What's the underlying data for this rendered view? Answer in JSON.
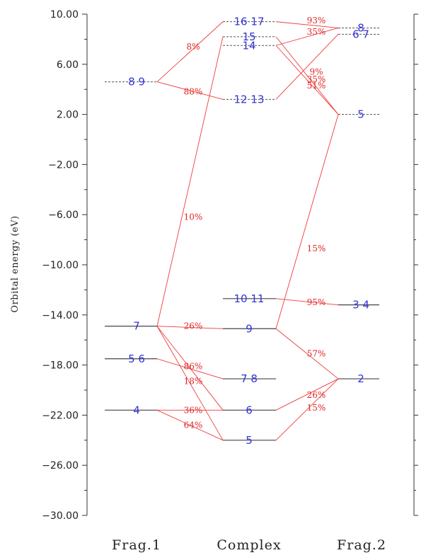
{
  "chart_data": {
    "type": "orbital-correlation-diagram",
    "ylabel": "Orbital energy (eV)",
    "yticks": [
      "10.00",
      "6.00",
      "2.00",
      "−2.00",
      "−6.00",
      "−10.00",
      "−14.00",
      "−18.00",
      "−22.00",
      "−26.00",
      "−30.00"
    ],
    "ytick_values": [
      10,
      6,
      2,
      -2,
      -6,
      -10,
      -14,
      -18,
      -22,
      -26,
      -30
    ],
    "ylim": [
      -30,
      10
    ],
    "columns": [
      "Frag.1",
      "Complex",
      "Frag.2"
    ],
    "levels": [
      {
        "col": 0,
        "e": 4.6,
        "occ": false,
        "label": "8 9"
      },
      {
        "col": 0,
        "e": -14.9,
        "occ": true,
        "label": "7"
      },
      {
        "col": 0,
        "e": -17.5,
        "occ": true,
        "label": "5 6"
      },
      {
        "col": 0,
        "e": -21.6,
        "occ": true,
        "label": "4"
      },
      {
        "col": 1,
        "e": 9.4,
        "occ": false,
        "label": "16 17"
      },
      {
        "col": 1,
        "e": 8.2,
        "occ": false,
        "label": "15"
      },
      {
        "col": 1,
        "e": 7.5,
        "occ": false,
        "label": "14"
      },
      {
        "col": 1,
        "e": 3.2,
        "occ": false,
        "label": "12 13"
      },
      {
        "col": 1,
        "e": -12.7,
        "occ": true,
        "label": "10 11"
      },
      {
        "col": 1,
        "e": -15.1,
        "occ": true,
        "label": "9"
      },
      {
        "col": 1,
        "e": -19.1,
        "occ": true,
        "label": "7 8"
      },
      {
        "col": 1,
        "e": -21.6,
        "occ": true,
        "label": "6"
      },
      {
        "col": 1,
        "e": -24.0,
        "occ": true,
        "label": "5"
      },
      {
        "col": 2,
        "e": 8.9,
        "occ": false,
        "label": "8"
      },
      {
        "col": 2,
        "e": 8.4,
        "occ": false,
        "label": "6 7"
      },
      {
        "col": 2,
        "e": 2.0,
        "occ": false,
        "label": "5"
      },
      {
        "col": 2,
        "e": -13.2,
        "occ": true,
        "label": "3 4"
      },
      {
        "col": 2,
        "e": -19.1,
        "occ": true,
        "label": "2"
      }
    ],
    "connections": [
      {
        "from": {
          "col": 0,
          "e": 4.6
        },
        "to": {
          "col": 1,
          "e": 9.4
        }
      },
      {
        "from": {
          "col": 0,
          "e": 4.6
        },
        "to": {
          "col": 1,
          "e": 3.2
        }
      },
      {
        "from": {
          "col": 0,
          "e": -14.9
        },
        "to": {
          "col": 1,
          "e": 8.2
        }
      },
      {
        "from": {
          "col": 0,
          "e": -14.9
        },
        "to": {
          "col": 1,
          "e": -15.1
        }
      },
      {
        "from": {
          "col": 0,
          "e": -14.9
        },
        "to": {
          "col": 1,
          "e": -21.6
        }
      },
      {
        "from": {
          "col": 0,
          "e": -14.9
        },
        "to": {
          "col": 1,
          "e": -24.0
        }
      },
      {
        "from": {
          "col": 0,
          "e": -17.5
        },
        "to": {
          "col": 1,
          "e": -19.1
        }
      },
      {
        "from": {
          "col": 0,
          "e": -21.6
        },
        "to": {
          "col": 1,
          "e": -21.6
        }
      },
      {
        "from": {
          "col": 0,
          "e": -21.6
        },
        "to": {
          "col": 1,
          "e": -24.0
        }
      },
      {
        "from": {
          "col": 2,
          "e": 8.9
        },
        "to": {
          "col": 1,
          "e": 9.4
        }
      },
      {
        "from": {
          "col": 2,
          "e": 8.9
        },
        "to": {
          "col": 1,
          "e": 7.5
        }
      },
      {
        "from": {
          "col": 2,
          "e": 8.4
        },
        "to": {
          "col": 1,
          "e": 3.2
        }
      },
      {
        "from": {
          "col": 2,
          "e": 2.0
        },
        "to": {
          "col": 1,
          "e": 8.2
        }
      },
      {
        "from": {
          "col": 2,
          "e": 2.0
        },
        "to": {
          "col": 1,
          "e": 7.5
        }
      },
      {
        "from": {
          "col": 2,
          "e": 2.0
        },
        "to": {
          "col": 1,
          "e": -15.1
        }
      },
      {
        "from": {
          "col": 2,
          "e": -13.2
        },
        "to": {
          "col": 1,
          "e": -12.7
        }
      },
      {
        "from": {
          "col": 2,
          "e": -19.1
        },
        "to": {
          "col": 1,
          "e": -15.1
        }
      },
      {
        "from": {
          "col": 2,
          "e": -19.1
        },
        "to": {
          "col": 1,
          "e": -21.6
        }
      },
      {
        "from": {
          "col": 2,
          "e": -19.1
        },
        "to": {
          "col": 1,
          "e": -24.0
        }
      }
    ],
    "percent_labels": [
      {
        "text": "8%",
        "col": 0,
        "e": 7.4
      },
      {
        "text": "88%",
        "col": 0,
        "e": 3.8
      },
      {
        "text": "10%",
        "col": 0,
        "e": -6.2
      },
      {
        "text": "26%",
        "col": 0,
        "e": -14.9
      },
      {
        "text": "86%",
        "col": 0,
        "e": -18.1
      },
      {
        "text": "18%",
        "col": 0,
        "e": -19.3
      },
      {
        "text": "36%",
        "col": 0,
        "e": -21.6
      },
      {
        "text": "64%",
        "col": 0,
        "e": -22.8
      },
      {
        "text": "93%",
        "col": 2,
        "e": 9.5
      },
      {
        "text": "35%",
        "col": 2,
        "e": 8.6
      },
      {
        "text": "9%",
        "col": 2,
        "e": 5.4
      },
      {
        "text": "35%",
        "col": 2,
        "e": 4.8
      },
      {
        "text": "51%",
        "col": 2,
        "e": 4.3
      },
      {
        "text": "15%",
        "col": 2,
        "e": -8.7
      },
      {
        "text": "95%",
        "col": 2,
        "e": -13.0
      },
      {
        "text": "57%",
        "col": 2,
        "e": -17.1
      },
      {
        "text": "26%",
        "col": 2,
        "e": -20.4
      },
      {
        "text": "15%",
        "col": 2,
        "e": -21.4
      }
    ]
  }
}
